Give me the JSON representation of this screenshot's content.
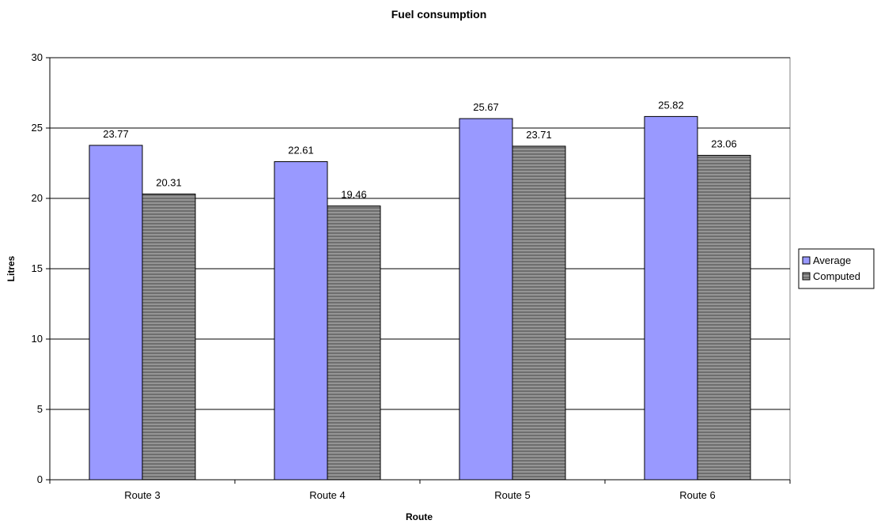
{
  "chart_data": {
    "type": "bar",
    "title": "Fuel consumption",
    "xlabel": "Route",
    "ylabel": "Litres",
    "categories": [
      "Route 3",
      "Route 4",
      "Route 5",
      "Route 6"
    ],
    "series": [
      {
        "name": "Average",
        "values": [
          23.77,
          22.61,
          25.67,
          25.82
        ],
        "color": "#9999ff",
        "pattern": "solid"
      },
      {
        "name": "Computed",
        "values": [
          20.31,
          19.46,
          23.71,
          23.06
        ],
        "color": "#808080",
        "pattern": "horizontal-stripes"
      }
    ],
    "ylim": [
      0,
      30
    ],
    "yticks": [
      0,
      5,
      10,
      15,
      20,
      25,
      30
    ],
    "grid": true,
    "legend_position": "right",
    "data_labels": true
  }
}
